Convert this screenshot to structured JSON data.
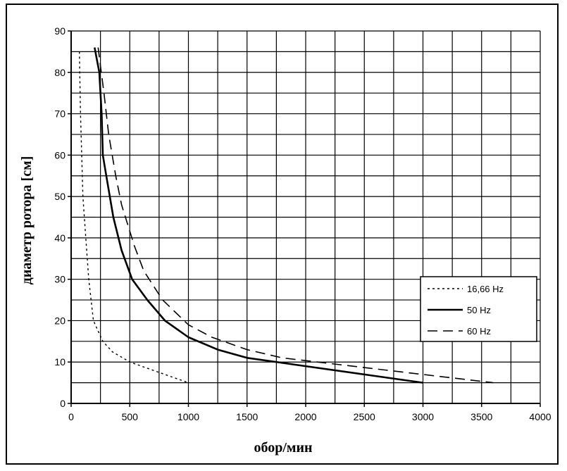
{
  "chart_data": {
    "type": "line",
    "xlabel": "обор/мин",
    "ylabel": "диаметр ротора [см]",
    "xlim": [
      0,
      4000
    ],
    "ylim": [
      0,
      90
    ],
    "grid": true,
    "legend_position": "right",
    "x_ticks": [
      "0",
      "500",
      "1000",
      "1500",
      "2000",
      "2500",
      "3000",
      "3500",
      "4000"
    ],
    "y_ticks": [
      "0",
      "10",
      "20",
      "30",
      "40",
      "50",
      "60",
      "70",
      "80",
      "90"
    ],
    "series": [
      {
        "name": "16,66 Hz",
        "style": "dotted",
        "points": [
          [
            70,
            85
          ],
          [
            80,
            70
          ],
          [
            100,
            50
          ],
          [
            125,
            40
          ],
          [
            150,
            30
          ],
          [
            190,
            20
          ],
          [
            270,
            15
          ],
          [
            350,
            12.5
          ],
          [
            500,
            10
          ],
          [
            600,
            9
          ],
          [
            800,
            7
          ],
          [
            1000,
            5
          ]
        ]
      },
      {
        "name": "50 Hz",
        "style": "solid",
        "points": [
          [
            200,
            86
          ],
          [
            240,
            80
          ],
          [
            260,
            70
          ],
          [
            270,
            60
          ],
          [
            300,
            55
          ],
          [
            360,
            45
          ],
          [
            430,
            37
          ],
          [
            520,
            30
          ],
          [
            650,
            25
          ],
          [
            800,
            20
          ],
          [
            1000,
            16
          ],
          [
            1250,
            13
          ],
          [
            1500,
            11
          ],
          [
            2000,
            9
          ],
          [
            2500,
            7
          ],
          [
            3000,
            5
          ]
        ]
      },
      {
        "name": "60 Hz",
        "style": "dashed",
        "points": [
          [
            230,
            86
          ],
          [
            280,
            75
          ],
          [
            320,
            65
          ],
          [
            380,
            55
          ],
          [
            430,
            48
          ],
          [
            540,
            38
          ],
          [
            620,
            32
          ],
          [
            780,
            25
          ],
          [
            1000,
            19
          ],
          [
            1200,
            16
          ],
          [
            1500,
            13
          ],
          [
            1800,
            11
          ],
          [
            2400,
            9
          ],
          [
            3000,
            7
          ],
          [
            3600,
            5
          ]
        ]
      }
    ]
  }
}
